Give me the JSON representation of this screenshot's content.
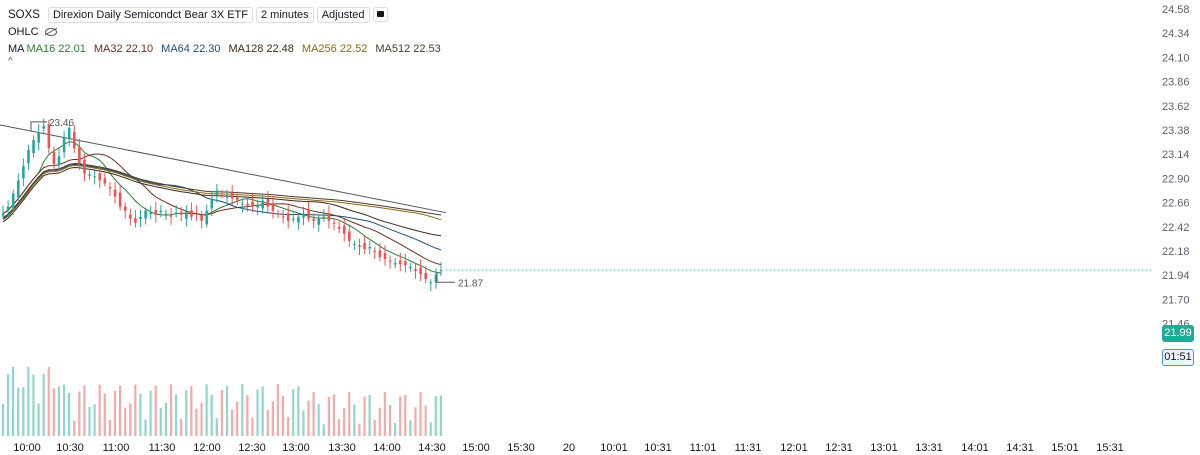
{
  "header": {
    "symbol": "SOXS",
    "name": "Direxion Daily Semicondct Bear 3X ETF",
    "interval": "2 minutes",
    "adjustment": "Adjusted",
    "ohlc_label": "OHLC",
    "ma_label": "MA",
    "moving_averages": [
      {
        "label": "MA16 22.01",
        "color": "#2e7d32"
      },
      {
        "label": "MA32 22.10",
        "color": "#6d2f1f"
      },
      {
        "label": "MA64 22.30",
        "color": "#1e4e79"
      },
      {
        "label": "MA128 22.48",
        "color": "#3b2a1a"
      },
      {
        "label": "MA256 22.52",
        "color": "#8a6a14"
      },
      {
        "label": "MA512 22.53",
        "color": "#4a3a2c"
      }
    ]
  },
  "price_tags": {
    "last_price": "21.99",
    "countdown": "01:51"
  },
  "colors": {
    "up": "#26a69a",
    "down": "#ef5350",
    "vol_up": "#8fd6cb",
    "vol_down": "#f7a9a7",
    "last_line": "#26a69a"
  },
  "chart_data": {
    "type": "candlestick",
    "symbol": "SOXS",
    "y_ticks": [
      "24.58",
      "24.34",
      "24.10",
      "23.86",
      "23.62",
      "23.38",
      "23.14",
      "22.90",
      "22.66",
      "22.42",
      "22.18",
      "21.94",
      "21.70",
      "21.46"
    ],
    "ylim": [
      21.37,
      24.58
    ],
    "x_ticks": [
      "10:00",
      "10:30",
      "11:00",
      "11:30",
      "12:00",
      "12:30",
      "13:00",
      "13:30",
      "14:00",
      "14:30",
      "15:00",
      "15:30",
      "20",
      "10:01",
      "10:31",
      "11:01",
      "11:31",
      "12:01",
      "12:31",
      "13:01",
      "13:31",
      "14:01",
      "14:31",
      "15:01",
      "15:31"
    ],
    "high_marker": "23.46",
    "low_marker": "21.87",
    "last_price": 21.99,
    "close_path": [
      [
        0,
        22.55
      ],
      [
        1,
        22.62
      ],
      [
        2,
        22.75
      ],
      [
        3,
        22.88
      ],
      [
        4,
        23.02
      ],
      [
        5,
        23.18
      ],
      [
        6,
        23.28
      ],
      [
        7,
        23.36
      ],
      [
        8,
        23.42
      ],
      [
        9,
        23.2
      ],
      [
        10,
        23.04
      ],
      [
        11,
        23.12
      ],
      [
        12,
        23.3
      ],
      [
        13,
        23.4
      ],
      [
        14,
        23.2
      ],
      [
        15,
        23.05
      ],
      [
        16,
        22.95
      ],
      [
        17,
        22.94
      ],
      [
        18,
        22.92
      ],
      [
        19,
        22.88
      ],
      [
        20,
        22.85
      ],
      [
        21,
        22.8
      ],
      [
        22,
        22.72
      ],
      [
        23,
        22.62
      ],
      [
        24,
        22.58
      ],
      [
        25,
        22.5
      ],
      [
        26,
        22.46
      ],
      [
        27,
        22.52
      ],
      [
        28,
        22.58
      ],
      [
        29,
        22.56
      ],
      [
        30,
        22.54
      ],
      [
        31,
        22.58
      ],
      [
        32,
        22.55
      ],
      [
        33,
        22.52
      ],
      [
        34,
        22.56
      ],
      [
        35,
        22.54
      ],
      [
        36,
        22.58
      ],
      [
        37,
        22.52
      ],
      [
        38,
        22.55
      ],
      [
        39,
        22.48
      ],
      [
        40,
        22.58
      ],
      [
        41,
        22.7
      ],
      [
        42,
        22.78
      ],
      [
        43,
        22.74
      ],
      [
        44,
        22.72
      ],
      [
        45,
        22.7
      ],
      [
        46,
        22.68
      ],
      [
        47,
        22.65
      ],
      [
        48,
        22.63
      ],
      [
        49,
        22.62
      ],
      [
        50,
        22.64
      ],
      [
        51,
        22.68
      ],
      [
        52,
        22.62
      ],
      [
        53,
        22.58
      ],
      [
        54,
        22.55
      ],
      [
        55,
        22.52
      ],
      [
        56,
        22.48
      ],
      [
        57,
        22.5
      ],
      [
        58,
        22.52
      ],
      [
        59,
        22.55
      ],
      [
        60,
        22.5
      ],
      [
        61,
        22.48
      ],
      [
        62,
        22.5
      ],
      [
        63,
        22.52
      ],
      [
        64,
        22.48
      ],
      [
        65,
        22.45
      ],
      [
        66,
        22.4
      ],
      [
        67,
        22.35
      ],
      [
        68,
        22.28
      ],
      [
        69,
        22.25
      ],
      [
        70,
        22.22
      ],
      [
        71,
        22.2
      ],
      [
        72,
        22.22
      ],
      [
        73,
        22.18
      ],
      [
        74,
        22.12
      ],
      [
        75,
        22.1
      ],
      [
        76,
        22.08
      ],
      [
        77,
        22.06
      ],
      [
        78,
        22.05
      ],
      [
        79,
        22.04
      ],
      [
        80,
        22.02
      ],
      [
        81,
        21.98
      ],
      [
        82,
        21.95
      ],
      [
        83,
        21.9
      ],
      [
        84,
        21.87
      ],
      [
        85,
        21.94
      ],
      [
        86,
        21.99
      ]
    ],
    "moving_average_endpoints": {
      "MA16": 22.01,
      "MA32": 22.1,
      "MA64": 22.3,
      "MA128": 22.48,
      "MA256": 22.52,
      "MA512": 22.53
    },
    "volume": {
      "type": "bar",
      "y_axis": "none"
    }
  }
}
